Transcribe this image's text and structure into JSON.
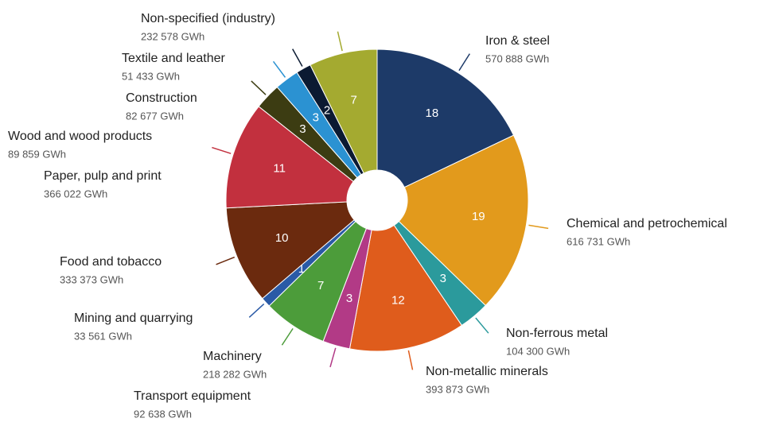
{
  "chart_data": {
    "type": "pie",
    "categories": [
      "Iron & steel",
      "Chemical and petrochemical",
      "Non-ferrous metal",
      "Non-metallic minerals",
      "Transport equipment",
      "Machinery",
      "Mining and quarrying",
      "Food and tobacco",
      "Paper, pulp and print",
      "Wood and wood products",
      "Construction",
      "Textile and leather",
      "Non-specified (industry)"
    ],
    "values": [
      570888,
      616731,
      104300,
      393873,
      92638,
      218282,
      33561,
      333373,
      366022,
      89859,
      82677,
      51433,
      232578
    ],
    "value_labels": [
      "570 888 GWh",
      "616 731 GWh",
      "104 300 GWh",
      "393 873 GWh",
      "92 638 GWh",
      "218 282 GWh",
      "33 561 GWh",
      "333 373 GWh",
      "366 022 GWh",
      "89 859 GWh",
      "82 677 GWh",
      "51 433 GWh",
      "232 578 GWh"
    ],
    "percentages": [
      18,
      19,
      3,
      12,
      3,
      7,
      1,
      10,
      11,
      3,
      3,
      2,
      7
    ],
    "colors": [
      "#1d3a68",
      "#e29a1c",
      "#2b9a9c",
      "#df5c1c",
      "#b23a86",
      "#4c9c3a",
      "#2a5aa6",
      "#6b2a0e",
      "#c2303e",
      "#3c3c12",
      "#2b92d2",
      "#0b1a32",
      "#a4aa30"
    ],
    "donut": true
  }
}
